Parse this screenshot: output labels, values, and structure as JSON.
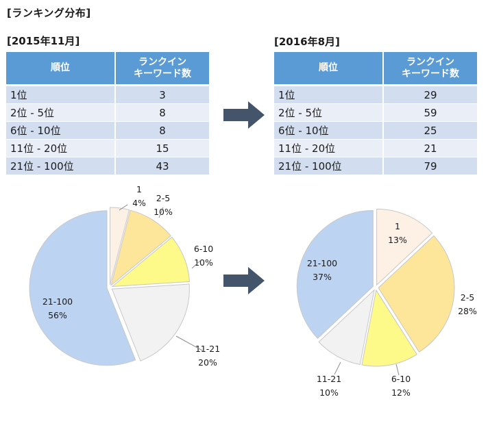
{
  "title": "[ランキング分布]",
  "columns": [
    "順位",
    "ランクイン",
    "キーワード数"
  ],
  "panels": [
    {
      "period": "[2015年11月]",
      "rows": [
        {
          "rank": "1位",
          "count": "3"
        },
        {
          "rank": "2位 - 5位",
          "count": "8"
        },
        {
          "rank": "6位 - 10位",
          "count": "8"
        },
        {
          "rank": "11位 - 20位",
          "count": "15"
        },
        {
          "rank": "21位 - 100位",
          "count": "43"
        }
      ]
    },
    {
      "period": "[2016年8月]",
      "rows": [
        {
          "rank": "1位",
          "count": "29"
        },
        {
          "rank": "2位 - 5位",
          "count": "59"
        },
        {
          "rank": "6位 - 10位",
          "count": "25"
        },
        {
          "rank": "11位 - 20位",
          "count": "21"
        },
        {
          "rank": "21位 - 100位",
          "count": "79"
        }
      ]
    }
  ],
  "chart_data": [
    {
      "type": "pie",
      "title": "",
      "slices": [
        {
          "label": "1",
          "percent_label": "4%",
          "value": 4,
          "color": "#fdf0e4"
        },
        {
          "label": "2-5",
          "percent_label": "10%",
          "value": 10,
          "color": "#fde59a"
        },
        {
          "label": "6-10",
          "percent_label": "10%",
          "value": 10,
          "color": "#fdfa8a"
        },
        {
          "label": "11-21",
          "percent_label": "20%",
          "value": 20,
          "color": "#f2f2f2"
        },
        {
          "label": "21-100",
          "percent_label": "56%",
          "value": 56,
          "color": "#bdd3f2"
        }
      ]
    },
    {
      "type": "pie",
      "title": "",
      "slices": [
        {
          "label": "1",
          "percent_label": "13%",
          "value": 13,
          "color": "#fdf0e4"
        },
        {
          "label": "2-5",
          "percent_label": "28%",
          "value": 28,
          "color": "#fde59a"
        },
        {
          "label": "6-10",
          "percent_label": "12%",
          "value": 12,
          "color": "#fdfa8a"
        },
        {
          "label": "11-21",
          "percent_label": "10%",
          "value": 10,
          "color": "#f2f2f2"
        },
        {
          "label": "21-100",
          "percent_label": "37%",
          "value": 37,
          "color": "#bdd3f2"
        }
      ]
    }
  ],
  "arrow_color": "#44546a"
}
